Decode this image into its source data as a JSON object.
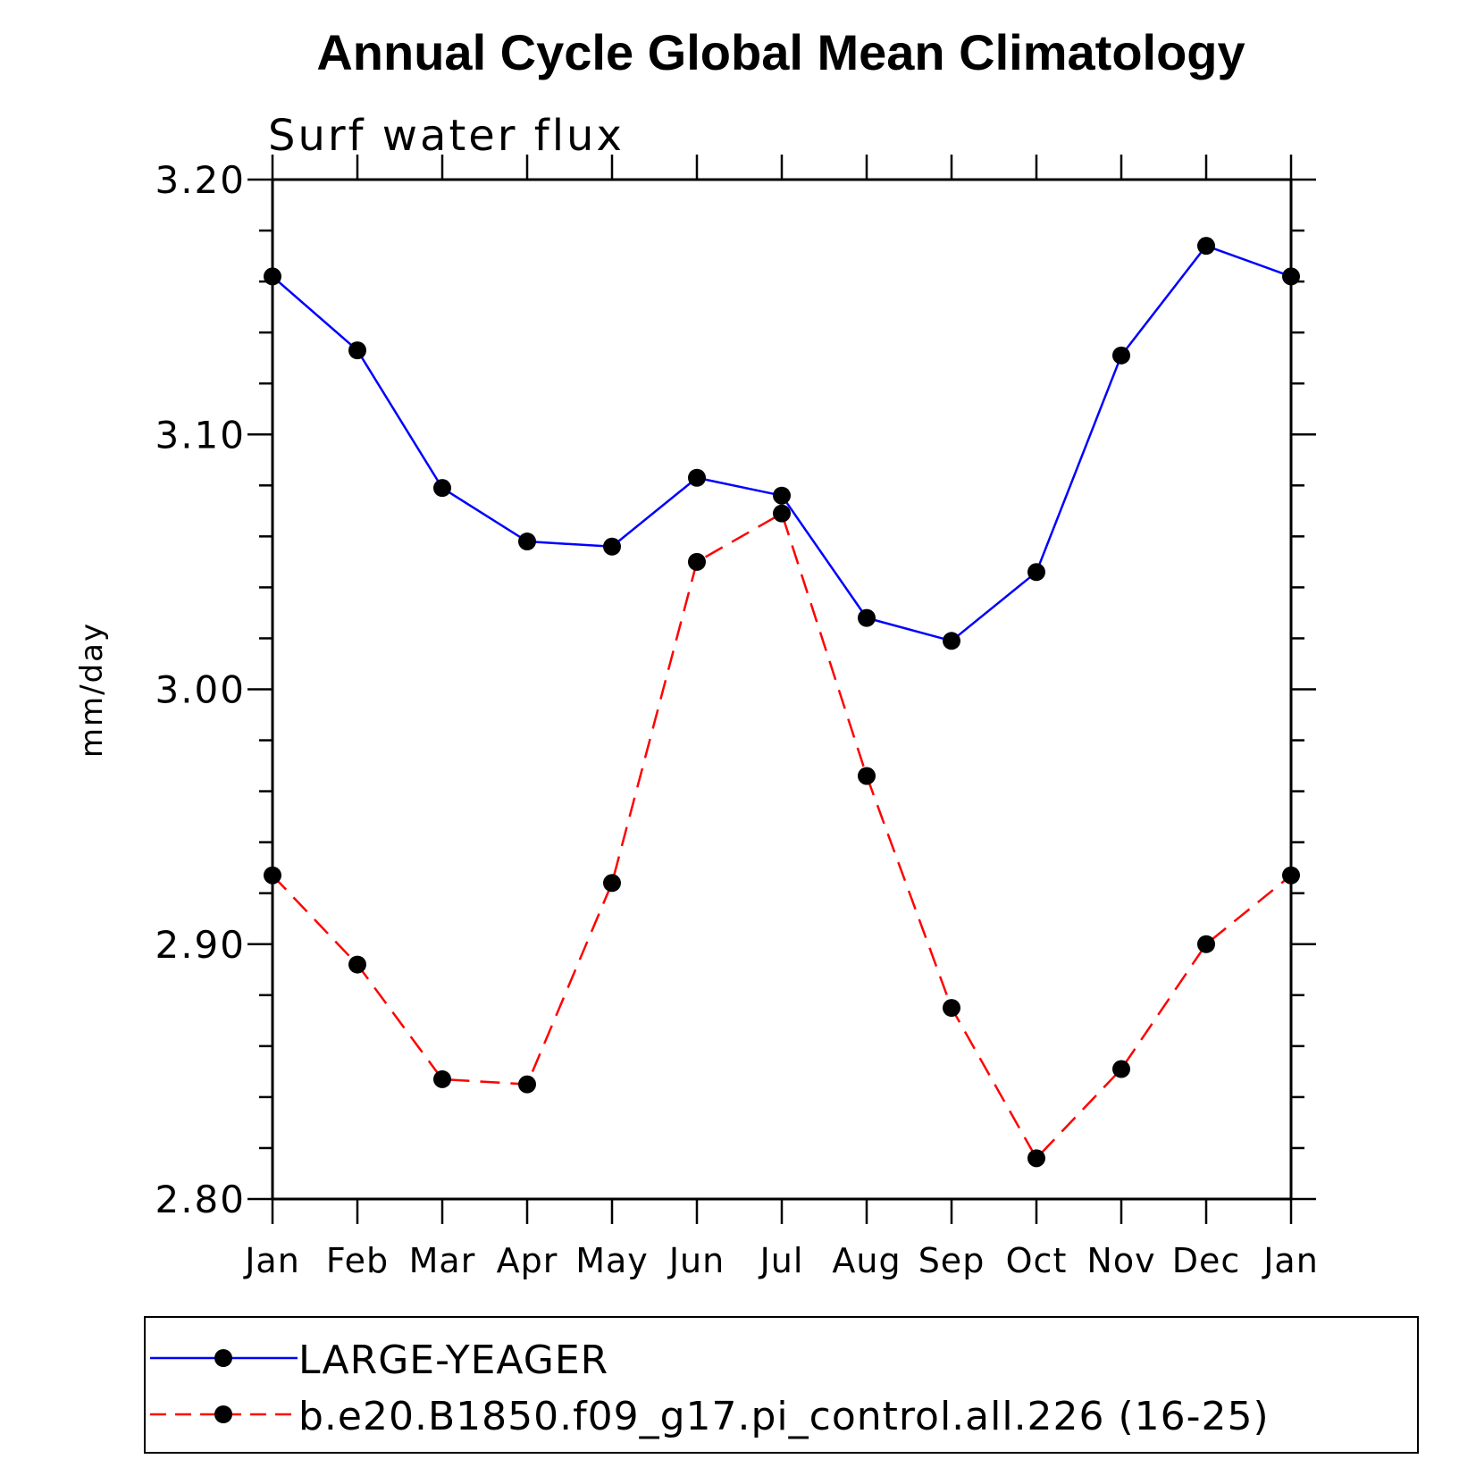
{
  "chart_data": {
    "type": "line",
    "title": "Annual Cycle Global Mean Climatology",
    "subtitle": "Surf water flux",
    "ylabel": "mm/day",
    "xlabel": "",
    "categories": [
      "Jan",
      "Feb",
      "Mar",
      "Apr",
      "May",
      "Jun",
      "Jul",
      "Aug",
      "Sep",
      "Oct",
      "Nov",
      "Dec",
      "Jan"
    ],
    "ylim": [
      2.8,
      3.2
    ],
    "yticks": [
      "2.80",
      "2.90",
      "3.00",
      "3.10",
      "3.20"
    ],
    "series": [
      {
        "name": "LARGE-YEAGER",
        "color": "#0000ff",
        "line_style": "solid",
        "marker": "filled-circle",
        "values": [
          3.162,
          3.133,
          3.079,
          3.058,
          3.056,
          3.083,
          3.076,
          3.028,
          3.019,
          3.046,
          3.131,
          3.174,
          3.162
        ]
      },
      {
        "name": "b.e20.B1850.f09_g17.pi_control.all.226 (16-25)",
        "color": "#ff0000",
        "line_style": "dashed",
        "marker": "filled-circle",
        "values": [
          2.927,
          2.892,
          2.847,
          2.845,
          2.924,
          3.05,
          3.069,
          2.966,
          2.875,
          2.816,
          2.851,
          2.9,
          2.927
        ]
      }
    ],
    "legend_position": "bottom",
    "grid": false
  }
}
